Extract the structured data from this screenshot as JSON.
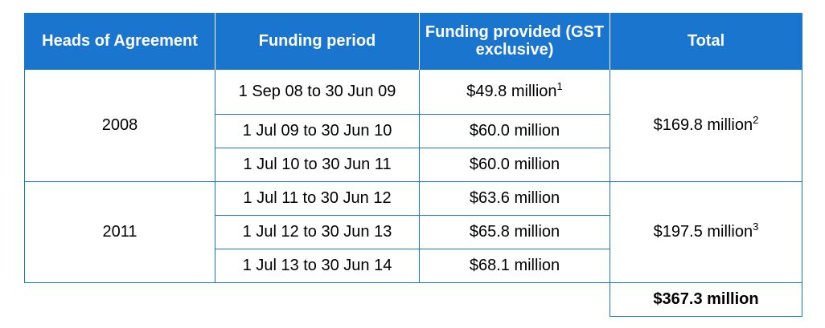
{
  "headers": {
    "col1": "Heads of Agreement",
    "col2": "Funding period",
    "col3": "Funding provided (GST exclusive)",
    "col4": "Total"
  },
  "groups": [
    {
      "year": "2008",
      "total": "$169.8 million",
      "total_note": "2",
      "rows": [
        {
          "period": "1 Sep 08 to 30 Jun 09",
          "amount": "$49.8 million",
          "note": "1"
        },
        {
          "period": "1 Jul 09 to 30 Jun 10",
          "amount": "$60.0 million",
          "note": ""
        },
        {
          "period": "1 Jul 10 to 30 Jun 11",
          "amount": "$60.0 million",
          "note": ""
        }
      ]
    },
    {
      "year": "2011",
      "total": "$197.5 million",
      "total_note": "3",
      "rows": [
        {
          "period": "1 Jul 11 to 30 Jun 12",
          "amount": "$63.6 million",
          "note": ""
        },
        {
          "period": "1 Jul 12 to 30 Jun 13",
          "amount": "$65.8 million",
          "note": ""
        },
        {
          "period": "1 Jul 13 to 30 Jun 14",
          "amount": "$68.1 million",
          "note": ""
        }
      ]
    }
  ],
  "grand_total": "$367.3 million",
  "colors": {
    "header_bg": "#1a75cf",
    "border": "#1a75cf",
    "header_text": "#ffffff"
  }
}
